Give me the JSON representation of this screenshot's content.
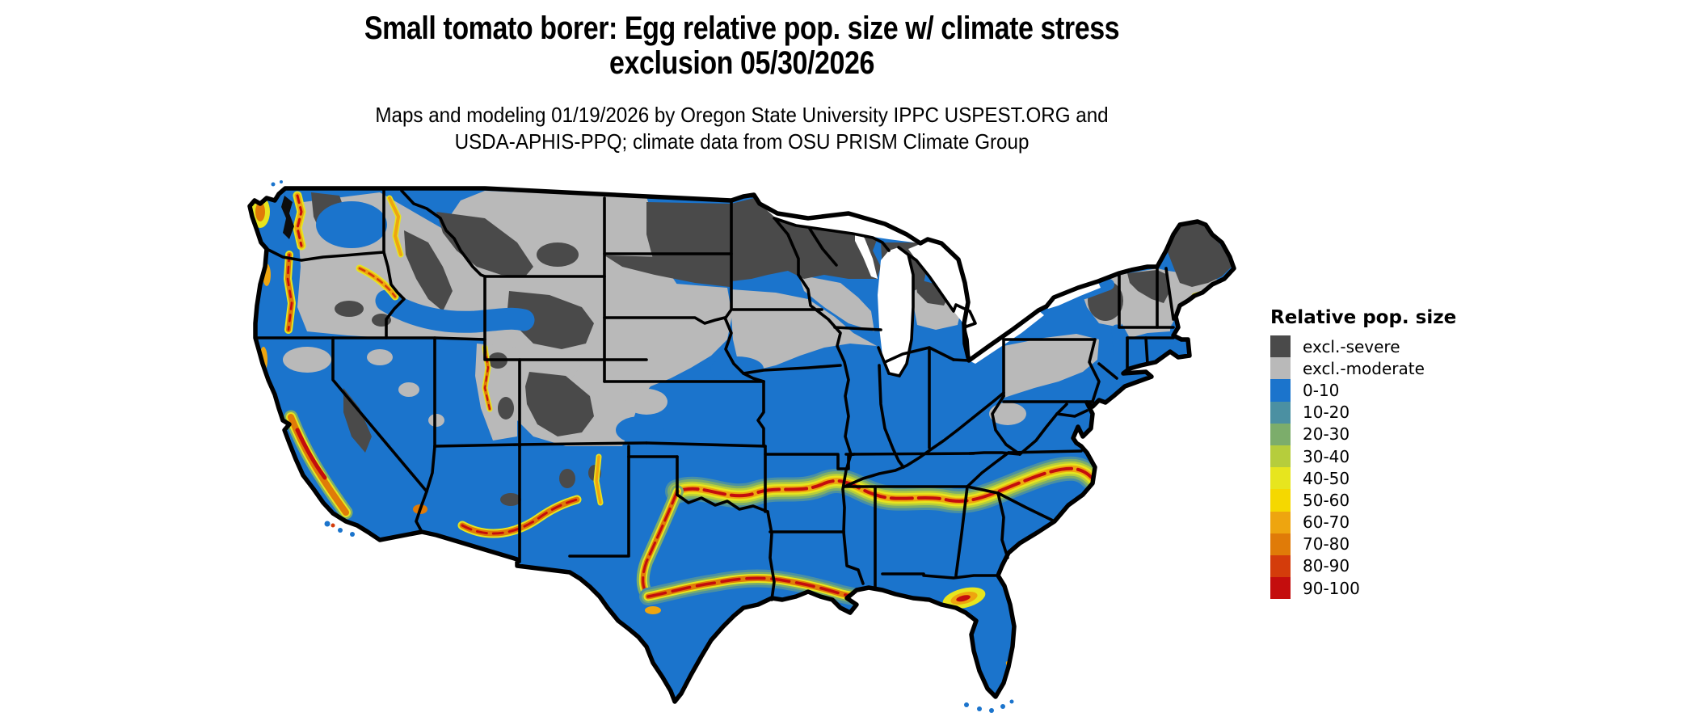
{
  "title": {
    "line1": "Small tomato borer: Egg relative pop. size w/ climate stress",
    "line2": "exclusion 05/30/2026"
  },
  "subtitle": {
    "line1": "Maps and modeling 01/19/2026 by Oregon State University IPPC USPEST.ORG and",
    "line2": "USDA-APHIS-PPQ; climate data from OSU PRISM Climate Group"
  },
  "legend": {
    "title": "Relative pop. size",
    "items": [
      {
        "label": "excl.-severe",
        "color": "#4a4a4a"
      },
      {
        "label": "excl.-moderate",
        "color": "#b9b9b9"
      },
      {
        "label": "0-10",
        "color": "#1b74cc"
      },
      {
        "label": "10-20",
        "color": "#4b90a2"
      },
      {
        "label": "20-30",
        "color": "#7cad6b"
      },
      {
        "label": "30-40",
        "color": "#b6cd3c"
      },
      {
        "label": "40-50",
        "color": "#e7e51e"
      },
      {
        "label": "50-60",
        "color": "#f5d800"
      },
      {
        "label": "60-70",
        "color": "#eea50f"
      },
      {
        "label": "70-80",
        "color": "#e07b08"
      },
      {
        "label": "80-90",
        "color": "#d43c0b"
      },
      {
        "label": "90-100",
        "color": "#c40d0d"
      }
    ]
  },
  "palette": {
    "sev": "#4a4a4a",
    "mod": "#b9b9b9",
    "c0": "#1b74cc",
    "c10": "#4b90a2",
    "c20": "#7cad6b",
    "c30": "#b6cd3c",
    "c40": "#e7e51e",
    "c50": "#f5d800",
    "c60": "#eea50f",
    "c70": "#e07b08",
    "c80": "#d43c0b",
    "c90": "#c40d0d"
  },
  "map": {
    "kind": "choropleth-raster of contiguous United States with state borders",
    "units": "Relative pop. size (percent classes) with climate-stress exclusion zones"
  }
}
